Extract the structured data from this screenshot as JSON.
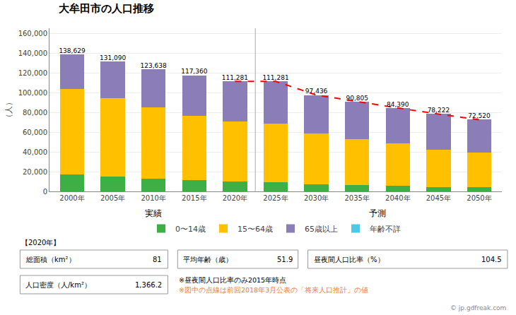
{
  "chart_data": {
    "type": "bar",
    "title": "大牟田市の人口推移",
    "ylabel": "（人）",
    "stacked": true,
    "grid": true,
    "legend": "bottom",
    "categories": [
      "2000年",
      "2005年",
      "2010年",
      "2015年",
      "2020年",
      "2025年",
      "2030年",
      "2035年",
      "2040年",
      "2045年",
      "2050年"
    ],
    "series": [
      {
        "name": "0〜14歳",
        "color": "#3cb044",
        "values": [
          17500,
          15200,
          13000,
          11200,
          10000,
          9500,
          7400,
          6600,
          5500,
          4600,
          4000
        ]
      },
      {
        "name": "15〜64歳",
        "color": "#ffc000",
        "values": [
          86000,
          79300,
          72100,
          65000,
          60600,
          59000,
          51200,
          46600,
          43000,
          37800,
          35300
        ]
      },
      {
        "name": "65歳以上",
        "color": "#8b7db8",
        "values": [
          35129,
          36590,
          38538,
          41160,
          40681,
          42781,
          38836,
          37605,
          35890,
          35822,
          33220
        ]
      },
      {
        "name": "年齢不詳",
        "color": "#4dc8e8",
        "values": [
          0,
          0,
          0,
          0,
          0,
          0,
          0,
          0,
          0,
          0,
          0
        ]
      },
      {
        "type": "line",
        "color": "red",
        "line_style": "dashed",
        "values": [
          null,
          null,
          null,
          null,
          111281,
          111281,
          97436,
          90805,
          84390,
          78222,
          72520
        ]
      }
    ],
    "totals": [
      138629,
      131090,
      123638,
      117360,
      111281,
      111281,
      97436,
      90805,
      84390,
      78222,
      72520
    ],
    "total_labels": [
      "138,629",
      "131,090",
      "123,638",
      "117,360",
      "111,281",
      "111,281",
      "97,436",
      "90,805",
      "84,390",
      "78,222",
      "72,520"
    ],
    "periods": [
      {
        "label": "実績",
        "categories": [
          "2000年",
          "2005年",
          "2010年",
          "2015年",
          "2020年"
        ]
      },
      {
        "label": "予測",
        "categories": [
          "2025年",
          "2030年",
          "2035年",
          "2040年",
          "2045年",
          "2050年"
        ]
      }
    ],
    "ylim": [
      0,
      165000
    ],
    "yticks": [
      0,
      {
        "value": 20000,
        "label": "20,000"
      },
      {
        "value": 40000,
        "label": "40,000"
      },
      {
        "value": 60000,
        "label": "60,000"
      },
      {
        "value": 80000,
        "label": "80,000"
      },
      {
        "value": 100000,
        "label": "100,000"
      },
      {
        "value": 120000,
        "label": "120,000"
      },
      {
        "value": 140000,
        "label": "140,000"
      },
      {
        "value": 160000,
        "label": "160,000"
      }
    ],
    "info": {
      "year": "【2020年】",
      "rows": [
        [
          {
            "label": "総面積（km²）",
            "value": "81"
          },
          {
            "label": "平均年齢（歳）",
            "value": "51.9"
          },
          {
            "label": "昼夜間人口比率（%）",
            "value": "104.5"
          }
        ],
        [
          {
            "label": "人口密度（人/km²）",
            "value": "1,366.2"
          }
        ]
      ],
      "notes": [
        {
          "text": "※昼夜間人口比率のみ2015年時点"
        },
        {
          "text": "※図中の点線は前回2018年3月公表の「将来人口推計」の値",
          "color": "#ed7d31"
        }
      ],
      "source": "© jp.gdfreak.com"
    }
  }
}
